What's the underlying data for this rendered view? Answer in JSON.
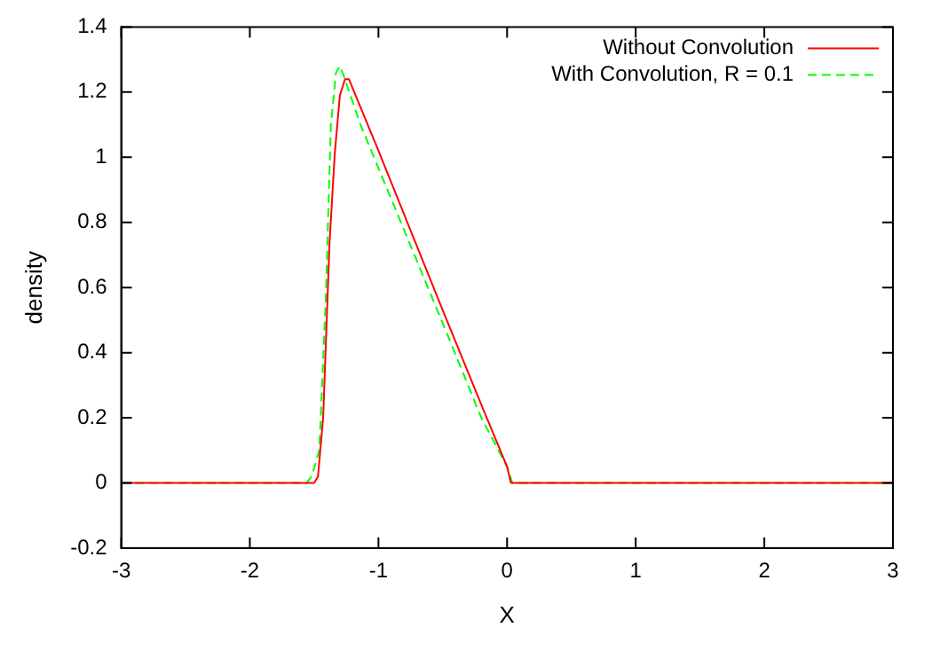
{
  "chart_data": {
    "type": "line",
    "xlabel": "X",
    "ylabel": "density",
    "xlim": [
      -3,
      3
    ],
    "xticks": [
      -3,
      -2,
      -1,
      0,
      1,
      2,
      3
    ],
    "ylim": [
      -0.2,
      1.4
    ],
    "yticks": [
      -0.2,
      0,
      0.2,
      0.4,
      0.6,
      0.8,
      1,
      1.2,
      1.4
    ],
    "grid": false,
    "legend": "top right",
    "marker": "none",
    "series": [
      {
        "name": "Without Convolution",
        "color": "#ff0000",
        "line_style": "solid",
        "x": [
          -3,
          -1.5,
          -1.47,
          -1.43,
          -1.38,
          -1.34,
          -1.3,
          -1.26,
          -1.23,
          -1,
          -0.5,
          -0.2,
          0,
          0.03,
          3
        ],
        "values": [
          0,
          0,
          0.02,
          0.2,
          0.74,
          1.01,
          1.19,
          1.24,
          1.24,
          1.02,
          0.53,
          0.24,
          0.05,
          0,
          0
        ]
      },
      {
        "name": "With Convolution, R = 0.1",
        "color": "#00ff00",
        "line_style": "dashed",
        "x": [
          -3,
          -1.56,
          -1.52,
          -1.46,
          -1.41,
          -1.37,
          -1.33,
          -1.3,
          -1.27,
          -1.14,
          -0.5,
          -0.2,
          0,
          0.04,
          3
        ],
        "values": [
          0,
          0,
          0.02,
          0.1,
          0.56,
          1.1,
          1.26,
          1.28,
          1.25,
          1.1,
          0.49,
          0.2,
          0.05,
          0,
          0
        ]
      }
    ]
  }
}
